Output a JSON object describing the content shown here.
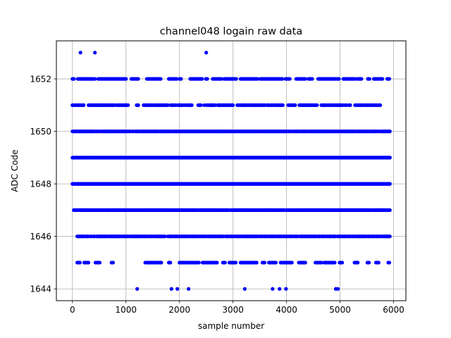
{
  "chart_data": {
    "type": "scatter",
    "title": "channel048 logain raw data",
    "xlabel": "sample number",
    "ylabel": "ADC Code",
    "xlim": [
      -300,
      6230
    ],
    "ylim": [
      1643.55,
      1653.45
    ],
    "xticks": [
      0,
      1000,
      2000,
      3000,
      4000,
      5000,
      6000
    ],
    "yticks": [
      1644,
      1646,
      1648,
      1650,
      1652
    ],
    "grid": true,
    "marker_color": "#0000ff",
    "x_range": [
      0,
      5930
    ],
    "points": [
      [
        150,
        1653
      ],
      [
        420,
        1653
      ],
      [
        2500,
        1653
      ],
      [
        1210,
        1644
      ],
      [
        1850,
        1644
      ],
      [
        1960,
        1644
      ],
      [
        2170,
        1644
      ],
      [
        3220,
        1644
      ],
      [
        3740,
        1644
      ],
      [
        3870,
        1644
      ],
      [
        3990,
        1644
      ],
      [
        4920,
        1644
      ],
      [
        4960,
        1644
      ]
    ],
    "levels": [
      {
        "value": 1652,
        "density": "sparse",
        "ranges": [
          [
            0,
            30
          ],
          [
            100,
            420
          ],
          [
            480,
            1000
          ],
          [
            1100,
            1230
          ],
          [
            1390,
            1650
          ],
          [
            1800,
            1950
          ],
          [
            2000,
            2030
          ],
          [
            2200,
            2420
          ],
          [
            2490,
            2520
          ],
          [
            2620,
            2780
          ],
          [
            2830,
            3060
          ],
          [
            3140,
            3460
          ],
          [
            3510,
            3920
          ],
          [
            3980,
            4060
          ],
          [
            4180,
            4350
          ],
          [
            4410,
            4480
          ],
          [
            4590,
            4980
          ],
          [
            5060,
            5270
          ],
          [
            5310,
            5400
          ],
          [
            5520,
            5550
          ],
          [
            5630,
            5790
          ],
          [
            5880,
            5920
          ]
        ]
      },
      {
        "value": 1651,
        "density": "medium",
        "ranges": [
          [
            0,
            210
          ],
          [
            300,
            1040
          ],
          [
            1200,
            1230
          ],
          [
            1330,
            1920
          ],
          [
            1960,
            2230
          ],
          [
            2350,
            2400
          ],
          [
            2450,
            2660
          ],
          [
            2710,
            3000
          ],
          [
            3080,
            3930
          ],
          [
            4030,
            4160
          ],
          [
            4240,
            4570
          ],
          [
            4650,
            5190
          ],
          [
            5280,
            5750
          ]
        ]
      },
      {
        "value": 1650,
        "density": "dense",
        "ranges": [
          [
            0,
            5930
          ]
        ]
      },
      {
        "value": 1649,
        "density": "full",
        "ranges": [
          [
            0,
            5930
          ]
        ]
      },
      {
        "value": 1648,
        "density": "full",
        "ranges": [
          [
            0,
            5930
          ]
        ]
      },
      {
        "value": 1647,
        "density": "dense",
        "ranges": [
          [
            0,
            5930
          ]
        ]
      },
      {
        "value": 1646,
        "density": "medium",
        "ranges": [
          [
            90,
            5930
          ]
        ]
      },
      {
        "value": 1645,
        "density": "sparse",
        "ranges": [
          [
            90,
            140
          ],
          [
            220,
            300
          ],
          [
            430,
            510
          ],
          [
            730,
            760
          ],
          [
            1360,
            1660
          ],
          [
            1800,
            1830
          ],
          [
            2000,
            2360
          ],
          [
            2430,
            2620
          ],
          [
            2640,
            2700
          ],
          [
            2810,
            2850
          ],
          [
            2930,
            3050
          ],
          [
            3140,
            3440
          ],
          [
            3550,
            3590
          ],
          [
            3670,
            3800
          ],
          [
            3890,
            4100
          ],
          [
            4230,
            4350
          ],
          [
            4540,
            4650
          ],
          [
            4700,
            4900
          ],
          [
            4990,
            5040
          ],
          [
            5270,
            5330
          ],
          [
            5510,
            5540
          ],
          [
            5670,
            5720
          ],
          [
            5900,
            5920
          ]
        ]
      }
    ]
  }
}
